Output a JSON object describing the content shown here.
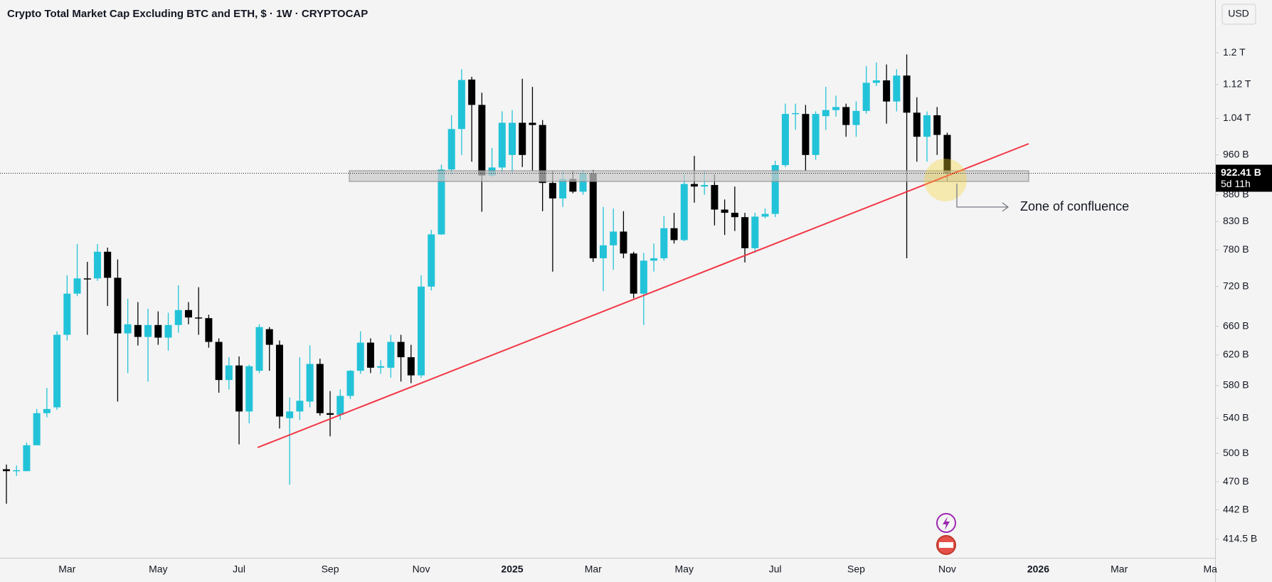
{
  "chart_data": {
    "type": "candlestick",
    "title": "Crypto Total Market Cap Excluding BTC and ETH, $ · 1W · CRYPTOCAP",
    "currency": "USD",
    "categories": [
      null,
      null,
      null,
      null,
      null,
      null,
      "Mar",
      null,
      null,
      null,
      null,
      null,
      null,
      null,
      null,
      "May",
      null,
      null,
      null,
      null,
      null,
      null,
      null,
      "Jul",
      null,
      null,
      null,
      null,
      null,
      null,
      null,
      null,
      "Sep",
      null,
      null,
      null,
      null,
      null,
      null,
      null,
      null,
      "Nov",
      null,
      null,
      null,
      null,
      null,
      null,
      null,
      null,
      "2025",
      null,
      null,
      null,
      null,
      null,
      null,
      null,
      "Mar",
      null,
      null,
      null,
      null,
      null,
      null,
      null,
      null,
      "May",
      null,
      null,
      null,
      null,
      null,
      null,
      null,
      null,
      "Jul",
      null,
      null,
      null,
      null,
      null,
      null,
      null,
      "Sep",
      null,
      null,
      null,
      null,
      null,
      null,
      null,
      null,
      "Nov",
      null,
      null,
      null,
      null,
      null,
      null,
      null,
      null,
      "2026",
      null,
      null,
      null,
      null,
      null,
      null,
      null,
      "Mar",
      null,
      null,
      null,
      null,
      null,
      null,
      null,
      null,
      "Ma"
    ],
    "open": [
      483,
      481,
      481,
      509,
      546,
      553,
      648,
      709,
      733,
      733,
      777,
      734,
      650,
      662,
      645,
      662,
      644,
      662,
      684,
      673,
      672,
      638,
      587,
      606,
      548,
      599,
      656,
      634,
      540,
      548,
      560,
      608,
      546,
      544,
      567,
      599,
      637,
      603,
      603,
      638,
      617,
      593,
      720,
      807,
      930,
      1016,
      1132,
      1071,
      918,
      934,
      960,
      1030,
      1030,
      1025,
      903,
      873,
      911,
      886,
      922,
      766,
      788,
      812,
      774,
      709,
      762,
      766,
      818,
      797,
      901,
      896,
      899,
      852,
      846,
      838,
      783,
      839,
      844,
      939,
      1050,
      1050,
      960,
      1045,
      1059,
      1066,
      1025,
      1057,
      1124,
      1130,
      1079,
      1142,
      1053,
      999,
      1047,
      1003,
      null,
      null,
      null,
      null,
      null,
      null,
      null,
      null,
      null,
      null,
      null,
      null,
      null,
      null,
      null,
      null,
      null,
      null,
      null,
      null,
      null,
      null,
      null,
      null,
      null,
      null
    ],
    "high": [
      488,
      487,
      512,
      551,
      577,
      653,
      738,
      790,
      760,
      790,
      784,
      764,
      701,
      696,
      686,
      682,
      680,
      722,
      696,
      719,
      677,
      643,
      617,
      618,
      607,
      663,
      659,
      640,
      565,
      617,
      633,
      615,
      573,
      575,
      600,
      653,
      643,
      613,
      648,
      648,
      634,
      738,
      815,
      940,
      1047,
      1158,
      1139,
      1100,
      975,
      1056,
      1059,
      1134,
      1114,
      1036,
      927,
      927,
      927,
      929,
      929,
      857,
      854,
      849,
      777,
      775,
      791,
      840,
      846,
      920,
      958,
      927,
      920,
      871,
      896,
      846,
      846,
      854,
      948,
      1074,
      1074,
      1071,
      1056,
      1114,
      1093,
      1074,
      1079,
      1166,
      1175,
      1170,
      1158,
      1196,
      1089,
      1056,
      1066,
      1008,
      null,
      null,
      null,
      null,
      null,
      null,
      null,
      null,
      null,
      null,
      null,
      null,
      null,
      null,
      null,
      null,
      null,
      null,
      null,
      null,
      null,
      null,
      null,
      null,
      null,
      null
    ],
    "low": [
      448,
      476,
      481,
      518,
      541,
      550,
      640,
      705,
      648,
      729,
      690,
      560,
      596,
      633,
      585,
      634,
      626,
      651,
      663,
      648,
      630,
      571,
      575,
      510,
      534,
      596,
      599,
      528,
      467,
      538,
      553,
      543,
      519,
      538,
      563,
      595,
      596,
      595,
      590,
      585,
      583,
      590,
      714,
      806,
      920,
      960,
      946,
      848,
      915,
      924,
      923,
      935,
      927,
      849,
      744,
      857,
      883,
      880,
      760,
      713,
      747,
      766,
      702,
      662,
      744,
      762,
      791,
      795,
      865,
      880,
      823,
      806,
      813,
      759,
      775,
      836,
      838,
      935,
      1014,
      927,
      950,
      1014,
      1044,
      999,
      999,
      1051,
      1116,
      1028,
      1056,
      766,
      946,
      946,
      960,
      906,
      null,
      null,
      null,
      null,
      null,
      null,
      null,
      null,
      null,
      null,
      null,
      null,
      null,
      null,
      null,
      null,
      null,
      null,
      null,
      null,
      null,
      null,
      null,
      null,
      null,
      null
    ],
    "close": [
      481,
      482,
      509,
      546,
      551,
      648,
      709,
      733,
      732,
      777,
      734,
      650,
      663,
      645,
      662,
      644,
      662,
      684,
      673,
      672,
      638,
      587,
      606,
      548,
      605,
      659,
      634,
      542,
      548,
      561,
      608,
      546,
      544,
      567,
      599,
      637,
      603,
      605,
      638,
      617,
      593,
      720,
      807,
      930,
      1016,
      1131,
      1071,
      918,
      934,
      1030,
      1030,
      960,
      1025,
      903,
      873,
      911,
      886,
      922,
      766,
      788,
      812,
      774,
      709,
      762,
      766,
      818,
      797,
      901,
      896,
      899,
      852,
      846,
      838,
      783,
      839,
      844,
      939,
      1050,
      1052,
      960,
      1050,
      1059,
      1066,
      1025,
      1057,
      1124,
      1130,
      1079,
      1142,
      1053,
      999,
      1047,
      1003,
      922.41,
      null,
      null,
      null,
      null,
      null,
      null,
      null,
      null,
      null,
      null,
      null,
      null,
      null,
      null,
      null,
      null,
      null,
      null,
      null,
      null,
      null,
      null,
      null,
      null,
      null,
      null
    ],
    "up_color": "#22c3d8",
    "down_color": "#000000",
    "log_scale": true,
    "ylim": [
      398,
      1347
    ],
    "yticks": [
      {
        "value": 1200,
        "label": "1.2 T"
      },
      {
        "value": 1120,
        "label": "1.12 T"
      },
      {
        "value": 1040,
        "label": "1.04 T"
      },
      {
        "value": 960,
        "label": "960 B"
      },
      {
        "value": 880,
        "label": "880 B"
      },
      {
        "value": 830,
        "label": "830 B"
      },
      {
        "value": 780,
        "label": "780 B"
      },
      {
        "value": 720,
        "label": "720 B"
      },
      {
        "value": 660,
        "label": "660 B"
      },
      {
        "value": 620,
        "label": "620 B"
      },
      {
        "value": 580,
        "label": "580 B"
      },
      {
        "value": 540,
        "label": "540 B"
      },
      {
        "value": 500,
        "label": "500 B"
      },
      {
        "value": 470,
        "label": "470 B"
      },
      {
        "value": 442,
        "label": "442 B"
      },
      {
        "value": 414.5,
        "label": "414.5 B"
      }
    ],
    "last_price": {
      "value": 922.41,
      "label": "922.41 B"
    },
    "countdown": "5d 11h",
    "annotation": "Zone of confluence"
  }
}
